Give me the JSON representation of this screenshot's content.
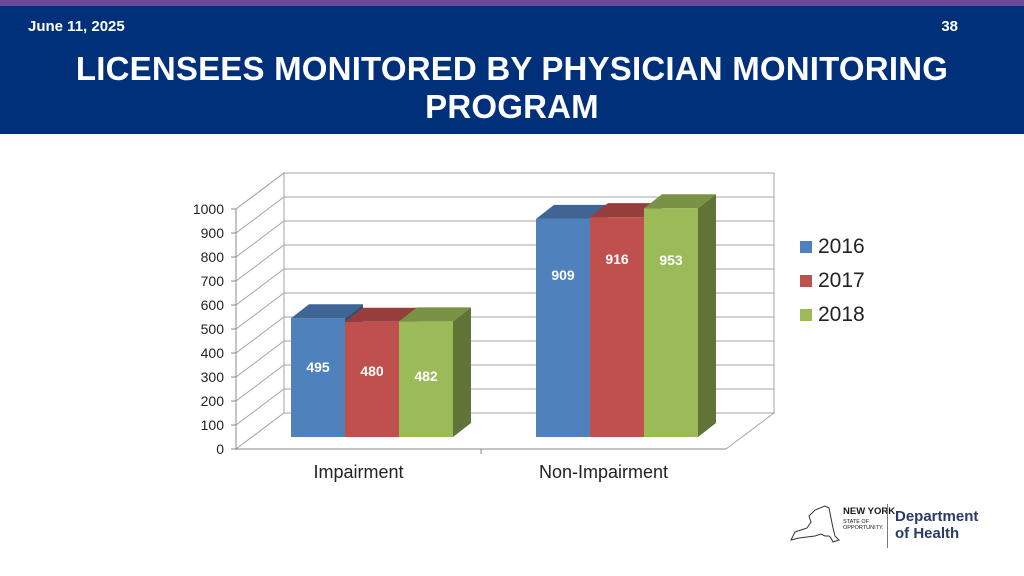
{
  "header": {
    "date": "June 11, 2025",
    "slide_number": "38",
    "title_line1": "LICENSEES MONITORED BY PHYSICIAN MONITORING",
    "title_line2": "PROGRAM"
  },
  "chart_data": {
    "type": "bar",
    "categories": [
      "Impairment",
      "Non-Impairment"
    ],
    "series": [
      {
        "name": "2016",
        "values": [
          495,
          909
        ],
        "color": "#4f81bd"
      },
      {
        "name": "2017",
        "values": [
          480,
          916
        ],
        "color": "#c0504d"
      },
      {
        "name": "2018",
        "values": [
          482,
          953
        ],
        "color": "#9bbb59"
      }
    ],
    "ylim": [
      0,
      1000
    ],
    "yticks": [
      "0",
      "100",
      "200",
      "300",
      "400",
      "500",
      "600",
      "700",
      "800",
      "900",
      "1000"
    ],
    "grid": true,
    "legend": "right",
    "style": "3d-clustered-column"
  },
  "legend": {
    "items": [
      {
        "label": "2016",
        "color": "#4f81bd"
      },
      {
        "label": "2017",
        "color": "#c0504d"
      },
      {
        "label": "2018",
        "color": "#9bbb59"
      }
    ]
  },
  "logo": {
    "state_line1": "NEW YORK",
    "state_line2": "STATE OF",
    "state_line3": "OPPORTUNITY.",
    "dept_line1": "Department",
    "dept_line2": "of Health"
  }
}
